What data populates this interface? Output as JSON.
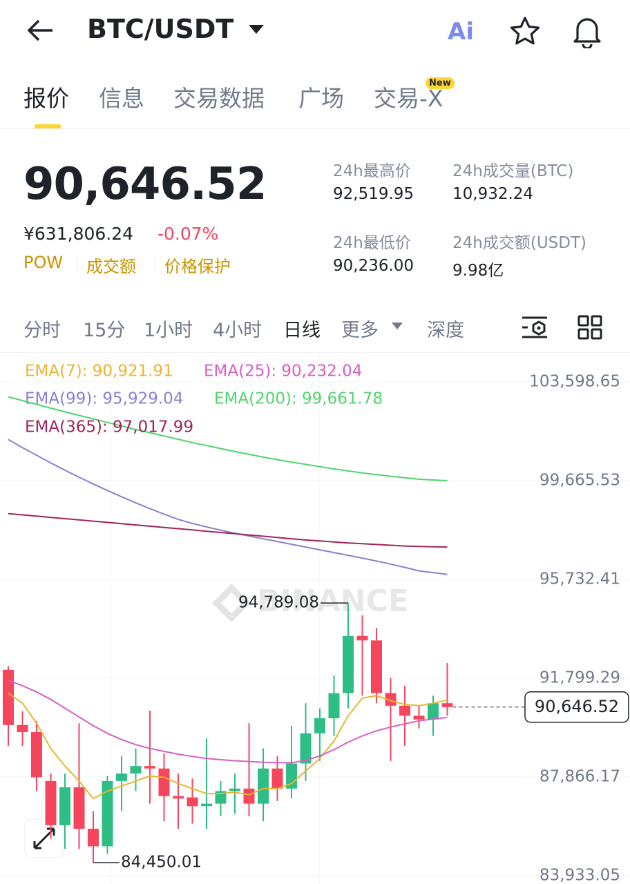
{
  "header": {
    "symbol": "BTC/USDT",
    "ai": "Ai"
  },
  "tabs": [
    {
      "label": "报价",
      "active": true
    },
    {
      "label": "信息"
    },
    {
      "label": "交易数据"
    },
    {
      "label": "广场"
    },
    {
      "label": "交易-X",
      "badge": "New"
    }
  ],
  "price": {
    "last": "90,646.52",
    "cny": "¥631,806.24",
    "change": "-0.07%",
    "tags": [
      "POW",
      "成交额",
      "价格保护"
    ]
  },
  "stats": [
    {
      "label": "24h最高价",
      "value": "92,519.95"
    },
    {
      "label": "24h成交量(BTC)",
      "value": "10,932.24"
    },
    {
      "label": "24h最低价",
      "value": "90,236.00"
    },
    {
      "label": "24h成交额(USDT)",
      "value": "9.98亿"
    }
  ],
  "intervals": [
    {
      "label": "分时"
    },
    {
      "label": "15分"
    },
    {
      "label": "1小时"
    },
    {
      "label": "4小时"
    },
    {
      "label": "日线",
      "active": true
    },
    {
      "label": "更多"
    },
    {
      "label": "深度"
    }
  ],
  "chart_data": {
    "type": "candlestick",
    "watermark": "BINANCE",
    "ylim": [
      83600,
      104640
    ],
    "yticks": [
      {
        "value": 103598.65,
        "label": "103,598.65"
      },
      {
        "value": 99665.53,
        "label": "99,665.53"
      },
      {
        "value": 95732.41,
        "label": "95,732.41"
      },
      {
        "value": 91799.29,
        "label": "91,799.29"
      },
      {
        "value": 87866.17,
        "label": "87,866.17"
      },
      {
        "value": 83933.05,
        "label": "83,933.05"
      }
    ],
    "up_color": "#2ebd85",
    "down_color": "#f6465d",
    "open": [
      92130,
      89930,
      89650,
      87700,
      85940,
      87450,
      85800,
      85100,
      87700,
      88000,
      88300,
      88200,
      87100,
      87050,
      86700,
      86800,
      87300,
      87400,
      86800,
      88200,
      87400,
      88400,
      89600,
      90200,
      91200,
      93480,
      93300,
      91200,
      90700,
      90300,
      90150,
      90800
    ],
    "high": [
      92270,
      90480,
      90100,
      88000,
      88000,
      90000,
      86500,
      87900,
      88700,
      89000,
      90500,
      88800,
      88000,
      87800,
      89400,
      87700,
      88000,
      90000,
      89000,
      88700,
      89900,
      90800,
      90600,
      91900,
      94789.08,
      94300,
      93800,
      91800,
      91500,
      90700,
      91100,
      92400
    ],
    "low": [
      89100,
      89100,
      87300,
      85400,
      85000,
      85000,
      84450.01,
      84800,
      86500,
      87300,
      86800,
      86100,
      85800,
      86000,
      85800,
      86300,
      86400,
      86300,
      86100,
      86900,
      87000,
      87700,
      88500,
      89500,
      90600,
      91100,
      90800,
      88500,
      89100,
      89800,
      89500,
      90300
    ],
    "close": [
      89930,
      89650,
      87850,
      85940,
      87450,
      85800,
      85100,
      87700,
      88000,
      88300,
      88200,
      87100,
      87000,
      86700,
      86800,
      87300,
      87400,
      86800,
      88200,
      87400,
      88400,
      89600,
      90200,
      91200,
      93480,
      93300,
      91200,
      90700,
      90300,
      90150,
      90800,
      90646.52
    ],
    "series": [
      {
        "name": "EMA(7): 90,921.91",
        "color": "#e8b52d",
        "values": [
          91200,
          90800,
          90000,
          89000,
          88300,
          87700,
          87000,
          87300,
          87500,
          87700,
          87900,
          87850,
          87600,
          87400,
          87200,
          87200,
          87250,
          87150,
          87400,
          87400,
          87600,
          88100,
          88600,
          89300,
          90300,
          91000,
          91100,
          90900,
          90750,
          90700,
          90800,
          90921.91
        ]
      },
      {
        "name": "EMA(25): 90,232.04",
        "color": "#d85fc3",
        "values": [
          91700,
          91500,
          91250,
          90950,
          90600,
          90250,
          89900,
          89600,
          89350,
          89150,
          89000,
          88880,
          88770,
          88680,
          88600,
          88550,
          88510,
          88480,
          88450,
          88430,
          88430,
          88520,
          88700,
          88950,
          89250,
          89500,
          89700,
          89850,
          89980,
          90100,
          90170,
          90232.04
        ]
      },
      {
        "name": "EMA(99): 95,929.04",
        "color": "#8b7fd1",
        "values": [
          101300,
          100980,
          100670,
          100370,
          100080,
          99800,
          99530,
          99270,
          99020,
          98780,
          98550,
          98330,
          98120,
          97960,
          97820,
          97690,
          97570,
          97460,
          97350,
          97240,
          97130,
          97020,
          96910,
          96800,
          96690,
          96580,
          96460,
          96340,
          96210,
          96070,
          96000,
          95929.04
        ]
      },
      {
        "name": "EMA(200): 99,661.78",
        "color": "#4fd46a",
        "values": [
          103000,
          102850,
          102700,
          102550,
          102400,
          102260,
          102120,
          101980,
          101840,
          101700,
          101570,
          101440,
          101310,
          101180,
          101060,
          100940,
          100820,
          100710,
          100600,
          100500,
          100400,
          100310,
          100220,
          100130,
          100050,
          99970,
          99900,
          99840,
          99780,
          99720,
          99690,
          99661.78
        ]
      },
      {
        "name": "EMA(365): 97,017.99",
        "color": "#a0245a",
        "values": [
          98350,
          98300,
          98250,
          98200,
          98150,
          98100,
          98050,
          98000,
          97950,
          97900,
          97850,
          97800,
          97750,
          97700,
          97650,
          97600,
          97550,
          97500,
          97450,
          97400,
          97350,
          97300,
          97260,
          97220,
          97180,
          97150,
          97120,
          97090,
          97060,
          97040,
          97030,
          97017.99
        ]
      }
    ],
    "annotations": [
      {
        "value": 94789.08,
        "label": "94,789.08"
      },
      {
        "value": 84450.01,
        "label": "84,450.01"
      }
    ],
    "current_price": {
      "value": 90646.52,
      "label": "90,646.52"
    }
  }
}
